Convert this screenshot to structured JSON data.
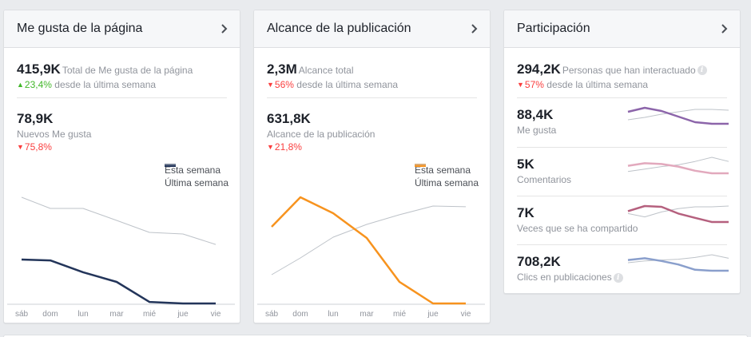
{
  "cards": [
    {
      "title": "Me gusta de la página",
      "summary_value": "415,9K",
      "summary_label": "Total de Me gusta de la página",
      "summary_delta": "23,4%",
      "summary_delta_dir": "up",
      "summary_delta_suffix": "desde la última semana",
      "secondary_value": "78,9K",
      "secondary_label": "Nuevos Me gusta",
      "secondary_delta": "75,8%",
      "secondary_delta_dir": "down"
    },
    {
      "title": "Alcance de la publicación",
      "summary_value": "2,3M",
      "summary_label": "Alcance total",
      "summary_delta": "56%",
      "summary_delta_dir": "down",
      "summary_delta_suffix": "desde la última semana",
      "secondary_value": "631,8K",
      "secondary_label": "Alcance de la publicación",
      "secondary_delta": "21,8%",
      "secondary_delta_dir": "down"
    },
    {
      "title": "Participación",
      "summary_value": "294,2K",
      "summary_label": "Personas que han interactuado",
      "summary_delta": "57%",
      "summary_delta_dir": "down",
      "summary_delta_suffix": "desde la última semana",
      "info_icon": "info-icon",
      "rows": [
        {
          "value": "88,4K",
          "label": "Me gusta",
          "color": "#8c65aa"
        },
        {
          "value": "5K",
          "label": "Comentarios",
          "color": "#e2a9bd"
        },
        {
          "value": "7K",
          "label": "Veces que se ha compartido",
          "color": "#b5607e"
        },
        {
          "value": "708,2K",
          "label": "Clics en publicaciones",
          "color": "#8a9fcc",
          "info": true
        }
      ]
    }
  ],
  "icons": {
    "chevron": "chevron-right-icon",
    "info": "info-icon",
    "up": "triangle-up-icon",
    "down": "triangle-down-icon"
  },
  "colors": {
    "up": "#42b72a",
    "down": "#fa3e3e",
    "last_week": "#bec3c9",
    "page_likes": "#23355a",
    "post_reach": "#f7931e"
  },
  "chart_data": [
    {
      "type": "line",
      "title": "Nuevos Me gusta",
      "categories": [
        "sáb",
        "dom",
        "lun",
        "mar",
        "mié",
        "jue",
        "vie"
      ],
      "legend_position": "top-right",
      "ylim": [
        0,
        100
      ],
      "grid": false,
      "series": [
        {
          "name": "Esta semana",
          "color": "#23355a",
          "values": [
            39.6,
            38.8,
            28.1,
            19.4,
            1.4,
            0,
            0
          ]
        },
        {
          "name": "Última semana",
          "color": "#bec3c9",
          "values": [
            95.7,
            85.6,
            85.6,
            74.8,
            64.0,
            62.6,
            53.2
          ]
        }
      ]
    },
    {
      "type": "line",
      "title": "Alcance de la publicación",
      "categories": [
        "sáb",
        "dom",
        "lun",
        "mar",
        "mié",
        "jue",
        "vie"
      ],
      "legend_position": "top-right",
      "ylim": [
        0,
        100
      ],
      "grid": false,
      "series": [
        {
          "name": "Esta semana",
          "color": "#f7931e",
          "values": [
            69.1,
            95.7,
            81.3,
            59.0,
            19.4,
            0,
            0
          ]
        },
        {
          "name": "Última semana",
          "color": "#bec3c9",
          "values": [
            25.9,
            41.0,
            59.7,
            71.2,
            79.9,
            87.8,
            87.1
          ]
        }
      ]
    },
    {
      "type": "line",
      "title": "Me gusta",
      "ylim": [
        0,
        100
      ],
      "series": [
        {
          "name": "Esta semana",
          "color": "#8c65aa",
          "values": [
            75,
            100,
            80,
            45,
            10,
            0,
            0
          ]
        },
        {
          "name": "Última semana",
          "color": "#bec3c9",
          "values": [
            25,
            40,
            60,
            75,
            90,
            90,
            85
          ]
        }
      ]
    },
    {
      "type": "line",
      "title": "Comentarios",
      "ylim": [
        0,
        100
      ],
      "series": [
        {
          "name": "Esta semana",
          "color": "#e2a9bd",
          "values": [
            47,
            63,
            58,
            42,
            16,
            0,
            0
          ]
        },
        {
          "name": "Última semana",
          "color": "#bec3c9",
          "values": [
            11,
            26,
            42,
            53,
            74,
            100,
            74
          ]
        }
      ]
    },
    {
      "type": "line",
      "title": "Veces que se ha compartido",
      "ylim": [
        0,
        100
      ],
      "series": [
        {
          "name": "Esta semana",
          "color": "#b5607e",
          "values": [
            68,
            100,
            95,
            53,
            26,
            0,
            0
          ]
        },
        {
          "name": "Última semana",
          "color": "#bec3c9",
          "values": [
            53,
            32,
            63,
            84,
            95,
            95,
            100
          ]
        }
      ]
    },
    {
      "type": "line",
      "title": "Clics en publicaciones",
      "ylim": [
        0,
        100
      ],
      "series": [
        {
          "name": "Esta semana",
          "color": "#8a9fcc",
          "values": [
            67,
            78,
            61,
            39,
            6,
            0,
            0
          ]
        },
        {
          "name": "Última semana",
          "color": "#bec3c9",
          "values": [
            50,
            61,
            67,
            72,
            83,
            100,
            78
          ]
        }
      ]
    }
  ]
}
